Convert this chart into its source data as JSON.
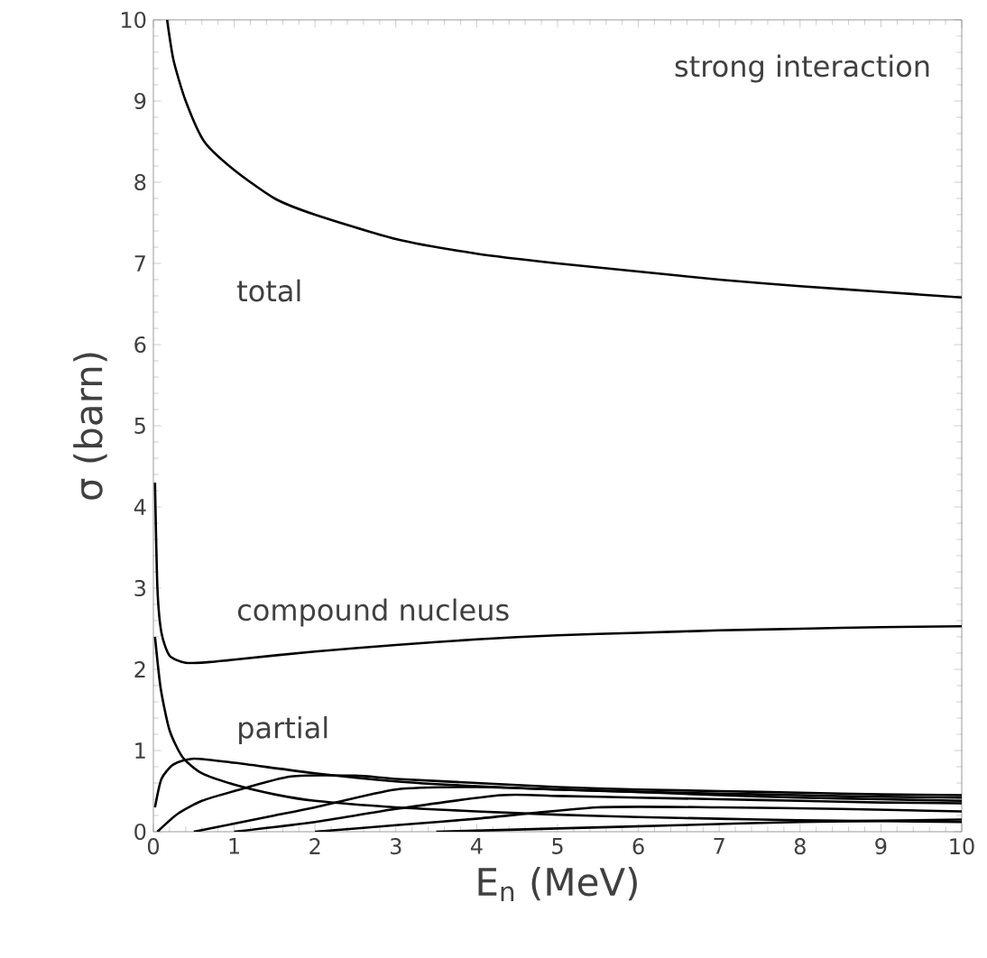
{
  "chart_data": {
    "type": "line",
    "xlabel": "E$_{n}$ (MeV)",
    "ylabel": "σ (barn)",
    "xlim": [
      0,
      10
    ],
    "ylim": [
      0,
      10
    ],
    "xticks": [
      0,
      1,
      2,
      3,
      4,
      5,
      6,
      7,
      8,
      9,
      10
    ],
    "yticks": [
      0,
      1,
      2,
      3,
      4,
      5,
      6,
      7,
      8,
      9,
      10
    ],
    "grid": false,
    "marker": "none",
    "line_style": "solid",
    "annotations": [
      "strong interaction",
      "total",
      "compound nucleus",
      "partial"
    ],
    "series": [
      {
        "color": "#000000",
        "x": [
          0.17,
          0.25,
          0.4,
          0.63,
          1,
          1.5,
          2,
          3,
          4,
          5,
          6,
          7,
          8,
          9,
          10
        ],
        "values": [
          10,
          9.5,
          9.0,
          8.5,
          8.15,
          7.8,
          7.6,
          7.3,
          7.12,
          7.0,
          6.9,
          6.8,
          6.72,
          6.65,
          6.58
        ]
      },
      {
        "color": "#000000",
        "x": [
          0.02,
          0.05,
          0.1,
          0.2,
          0.4,
          0.7,
          1,
          2,
          3,
          4,
          5,
          6,
          7,
          8,
          9,
          10
        ],
        "values": [
          4.3,
          3.0,
          2.45,
          2.17,
          2.08,
          2.09,
          2.12,
          2.22,
          2.3,
          2.37,
          2.42,
          2.45,
          2.48,
          2.5,
          2.52,
          2.53
        ]
      },
      {
        "color": "#000000",
        "x": [
          0.02,
          0.09,
          0.2,
          0.36,
          0.6,
          1,
          1.5,
          2,
          3,
          4,
          5,
          6,
          7,
          8,
          9,
          10
        ],
        "values": [
          2.4,
          1.77,
          1.25,
          0.92,
          0.72,
          0.58,
          0.46,
          0.38,
          0.3,
          0.25,
          0.21,
          0.18,
          0.16,
          0.14,
          0.13,
          0.12
        ]
      },
      {
        "color": "#000000",
        "x": [
          0.02,
          0.1,
          0.25,
          0.5,
          1,
          2,
          3,
          4,
          5,
          6,
          7,
          8,
          9,
          10
        ],
        "values": [
          0.3,
          0.65,
          0.83,
          0.9,
          0.85,
          0.72,
          0.62,
          0.56,
          0.52,
          0.49,
          0.47,
          0.45,
          0.43,
          0.42
        ]
      },
      {
        "color": "#000000",
        "x": [
          0.05,
          0.3,
          0.6,
          1,
          1.7,
          2.5,
          3,
          4,
          5,
          6,
          7,
          8,
          9,
          10
        ],
        "values": [
          0,
          0.22,
          0.38,
          0.5,
          0.68,
          0.69,
          0.65,
          0.6,
          0.55,
          0.52,
          0.5,
          0.48,
          0.46,
          0.45
        ]
      },
      {
        "color": "#000000",
        "x": [
          0.5,
          1,
          1.5,
          2,
          3,
          4,
          5,
          6,
          7,
          8,
          9,
          10
        ],
        "values": [
          0,
          0.1,
          0.2,
          0.3,
          0.52,
          0.55,
          0.52,
          0.49,
          0.45,
          0.42,
          0.4,
          0.38
        ]
      },
      {
        "color": "#000000",
        "x": [
          1,
          2,
          3,
          4.3,
          5,
          6,
          7,
          8,
          9,
          10
        ],
        "values": [
          0,
          0.12,
          0.28,
          0.45,
          0.44,
          0.42,
          0.4,
          0.38,
          0.36,
          0.35
        ]
      },
      {
        "color": "#000000",
        "x": [
          2,
          3,
          4,
          5.5,
          7,
          8.5,
          10
        ],
        "values": [
          0,
          0.08,
          0.16,
          0.3,
          0.3,
          0.28,
          0.25
        ]
      },
      {
        "color": "#000000",
        "x": [
          3.5,
          5,
          6.5,
          8,
          10
        ],
        "values": [
          0,
          0.04,
          0.08,
          0.12,
          0.15
        ]
      }
    ]
  }
}
